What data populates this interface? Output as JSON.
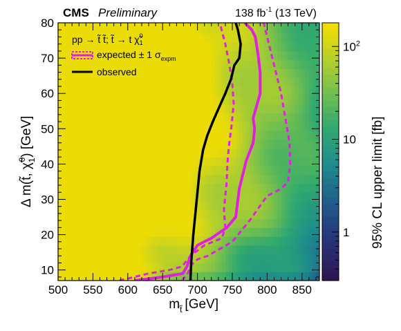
{
  "header": {
    "experiment": "CMS",
    "status": "Preliminary",
    "lumi_value": "138 fb",
    "lumi_exp": "-1",
    "energy": "(13 TeV)"
  },
  "legend": {
    "process": "pp → t̃ t̃; t̃ → t χ̃",
    "process_super": "0",
    "process_sub": "1",
    "expected": "expected ± 1 σ",
    "expected_sub": "expm",
    "observed": "observed"
  },
  "colors": {
    "expected": "#e020e0",
    "observed": "#000000",
    "frame": "#000000"
  },
  "chart_data": {
    "type": "heatmap",
    "xlabel": "m  [GeV]",
    "xlabel_sub": "t̃",
    "ylabel": "Δ m(t̃, χ̃ ) [GeV]",
    "ylabel_super": "0",
    "ylabel_sub": "1",
    "zlabel": "95% CL upper limit [fb]",
    "xlim": [
      500,
      875
    ],
    "ylim": [
      7,
      80
    ],
    "zlim": [
      0.3,
      180
    ],
    "zscale": "log",
    "xticks": [
      500,
      550,
      600,
      650,
      700,
      750,
      800,
      850
    ],
    "yticks": [
      10,
      20,
      30,
      40,
      50,
      60,
      70,
      80
    ],
    "zticks": [
      {
        "value": 1,
        "label": "1"
      },
      {
        "value": 10,
        "label": "10"
      },
      {
        "value": 100,
        "label": "10",
        "exp": "2"
      }
    ],
    "observed": {
      "x": [
        690,
        691,
        694,
        699,
        703,
        708,
        714,
        722,
        731,
        740,
        748,
        753,
        760,
        762,
        760,
        758,
        755
      ],
      "y": [
        7,
        12,
        20,
        30,
        38,
        44,
        48,
        52,
        56,
        60,
        64,
        68,
        70,
        74,
        76,
        78,
        80
      ]
    },
    "expected": {
      "x": [
        610,
        650,
        679,
        685,
        690,
        700,
        720,
        742,
        755,
        760,
        770,
        780,
        782,
        780,
        790,
        790,
        787,
        783,
        778,
        768
      ],
      "y": [
        7,
        8,
        9,
        11,
        14,
        17,
        19,
        22,
        25,
        33,
        41,
        46,
        50,
        53,
        60,
        66,
        71,
        76,
        78,
        80
      ]
    },
    "expected_plus": {
      "x": [
        678,
        686,
        690,
        694,
        700,
        715,
        750,
        775,
        800,
        820,
        830,
        833,
        832,
        827,
        820,
        810,
        800,
        795
      ],
      "y": [
        7,
        9,
        11,
        12,
        13,
        14,
        18,
        24,
        31,
        33,
        35,
        40,
        46,
        52,
        60,
        68,
        76,
        80
      ]
    },
    "expected_minus": {
      "x": [
        588,
        630,
        660,
        678,
        690,
        710,
        735,
        740,
        738,
        740,
        742,
        743,
        745,
        749,
        752,
        750,
        745,
        740,
        732
      ],
      "y": [
        7,
        9,
        10,
        11,
        14,
        17,
        19,
        22,
        27,
        31,
        35,
        40,
        45,
        51,
        57,
        63,
        69,
        74,
        80
      ]
    }
  }
}
